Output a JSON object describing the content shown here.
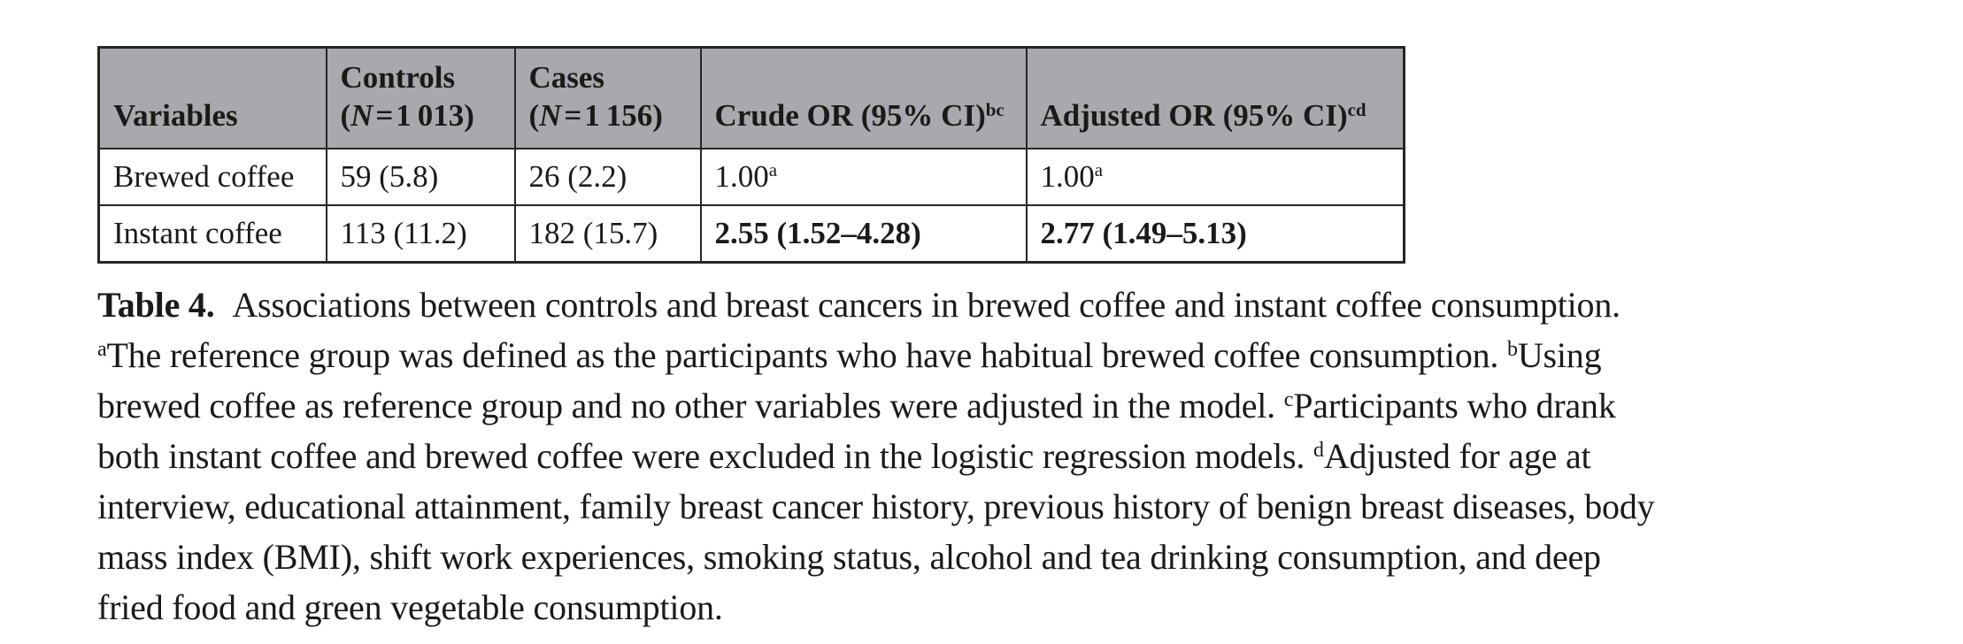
{
  "page": {
    "background": "#ffffff",
    "text_color": "#1a1a1a"
  },
  "table": {
    "header_bg": "#a7a9ac",
    "border_color": "#262626",
    "header": {
      "variables": [
        {
          "t": "Variables"
        }
      ],
      "controls": [
        {
          "t": "Controls"
        },
        {
          "br": true
        },
        {
          "t": "("
        },
        {
          "t": "N",
          "i": true
        },
        {
          "t": " = 1 013)"
        }
      ],
      "cases": [
        {
          "t": "Cases"
        },
        {
          "br": true
        },
        {
          "t": "("
        },
        {
          "t": "N",
          "i": true
        },
        {
          "t": " = 1 156)"
        }
      ],
      "crude_or": [
        {
          "t": "Crude OR (95% CI)"
        },
        {
          "t": "bc",
          "sup": true
        }
      ],
      "adjusted_or": [
        {
          "t": "Adjusted OR (95% CI)"
        },
        {
          "t": "cd",
          "sup": true
        }
      ]
    },
    "rows": [
      {
        "variable": [
          {
            "t": "Brewed coffee"
          }
        ],
        "controls": [
          {
            "t": "59 (5.8)"
          }
        ],
        "cases": [
          {
            "t": "26 (2.2)"
          }
        ],
        "crude_or": [
          {
            "t": "1.00"
          },
          {
            "t": "a",
            "sup": true
          }
        ],
        "adjusted_or": [
          {
            "t": "1.00"
          },
          {
            "t": "a",
            "sup": true
          }
        ]
      },
      {
        "variable": [
          {
            "t": "Instant coffee"
          }
        ],
        "controls": [
          {
            "t": "113 (11.2)"
          }
        ],
        "cases": [
          {
            "t": "182 (15.7)"
          }
        ],
        "crude_or": [
          {
            "t": "2.55 (1.52–4.28)",
            "b": true
          }
        ],
        "adjusted_or": [
          {
            "t": "2.77 (1.49–5.13)",
            "b": true
          }
        ]
      }
    ]
  },
  "caption": {
    "lines": [
      [
        {
          "t": "Table 4.",
          "b": true
        },
        {
          "t": " Associations between controls and breast cancers in brewed coffee and instant coffee consumption."
        }
      ],
      [
        {
          "t": "a",
          "sup": true
        },
        {
          "t": "The reference group was defined as the participants who have habitual brewed coffee consumption. "
        },
        {
          "t": "b",
          "sup": true
        },
        {
          "t": "Using"
        }
      ],
      [
        {
          "t": "brewed coffee as reference group and no other variables were adjusted in the model. "
        },
        {
          "t": "c",
          "sup": true
        },
        {
          "t": "Participants who drank"
        }
      ],
      [
        {
          "t": "both instant coffee and brewed coffee were excluded in the logistic regression models. "
        },
        {
          "t": "d",
          "sup": true
        },
        {
          "t": "Adjusted for age at"
        }
      ],
      [
        {
          "t": "interview, educational attainment, family breast cancer history, previous history of benign breast diseases, body"
        }
      ],
      [
        {
          "t": "mass index (BMI), shift work experiences, smoking status, alcohol and tea drinking consumption, and deep"
        }
      ],
      [
        {
          "t": "fried food and green vegetable consumption."
        }
      ]
    ]
  }
}
